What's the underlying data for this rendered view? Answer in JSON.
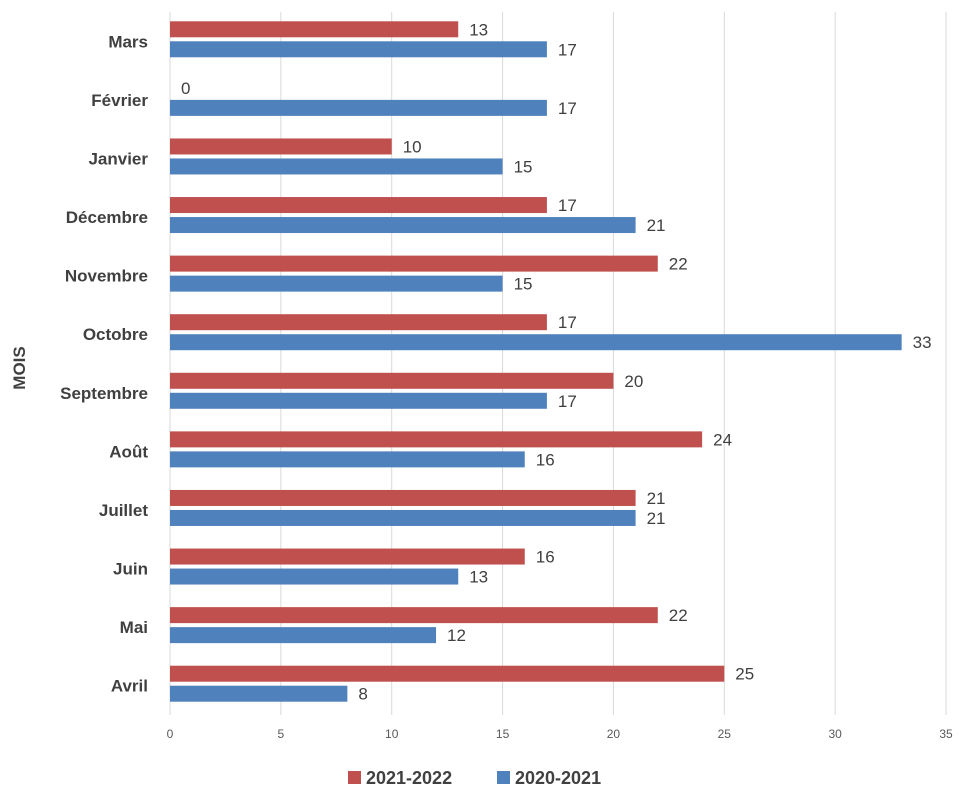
{
  "chart_data": {
    "type": "bar",
    "orientation": "horizontal",
    "categories": [
      "Avril",
      "Mai",
      "Juin",
      "Juillet",
      "Août",
      "Septembre",
      "Octobre",
      "Novembre",
      "Décembre",
      "Janvier",
      "Février",
      "Mars"
    ],
    "series": [
      {
        "name": "2021-2022",
        "color": "#c0504d",
        "values": [
          25,
          22,
          16,
          21,
          24,
          20,
          17,
          22,
          17,
          10,
          0,
          13
        ]
      },
      {
        "name": "2020-2021",
        "color": "#4f81bd",
        "values": [
          8,
          12,
          13,
          21,
          16,
          17,
          33,
          15,
          21,
          15,
          17,
          17
        ]
      }
    ],
    "title": "",
    "xlabel": "",
    "ylabel": "MOIS",
    "xlim": [
      0,
      35
    ],
    "xticks": [
      0,
      5,
      10,
      15,
      20,
      25,
      30,
      35
    ],
    "grid": "vertical",
    "legend_position": "bottom"
  }
}
